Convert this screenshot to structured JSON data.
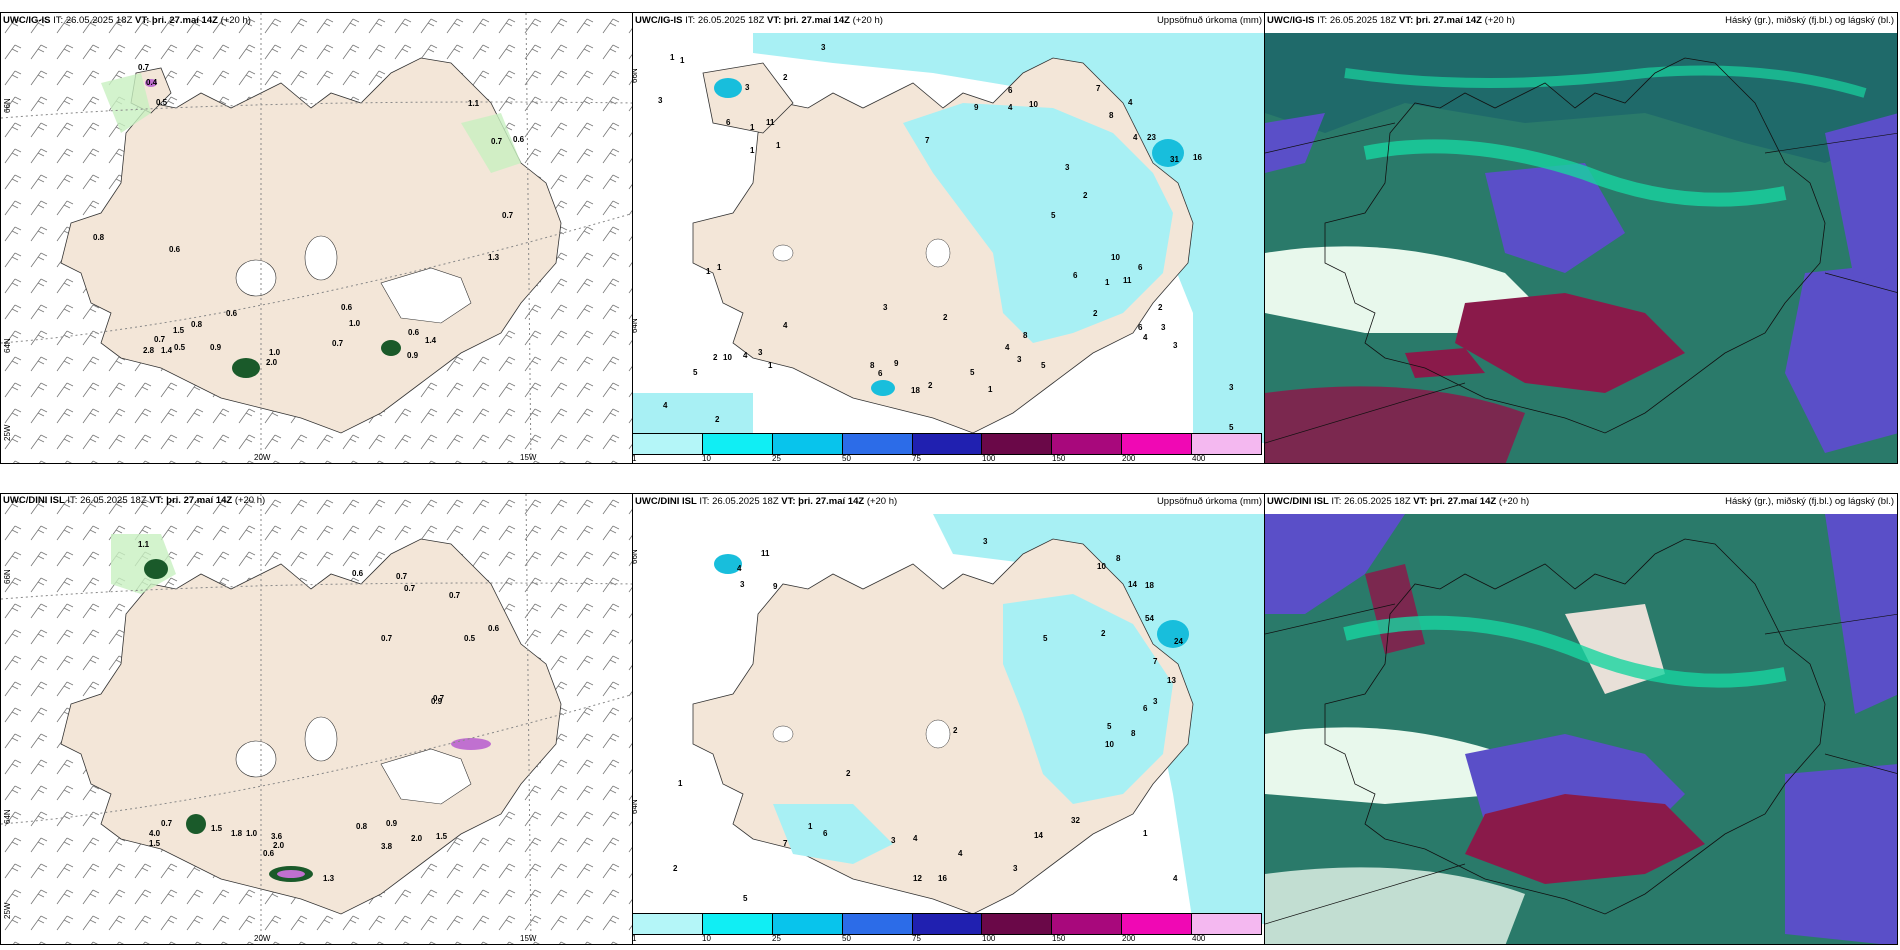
{
  "colors": {
    "land": "#f3e6d8",
    "precip_light": "#a8f0f4",
    "precip_mid": "#12d6e6",
    "precip_heavy": "#18bedc",
    "green_light": "#c8f0c0",
    "cloud_low": "#5a4fc8",
    "cloud_mid": "#0a9c78",
    "cloud_high": "#2a7a6a",
    "cloud_red": "#8a1a4a",
    "colorbar": [
      "#b4f6f8",
      "#10eef4",
      "#08c4ec",
      "#2c6ce8",
      "#2020b0",
      "#6a0848",
      "#a8087c",
      "#f008b4",
      "#f4b8f0"
    ]
  },
  "panels": [
    {
      "model": "UWC/IG-IS",
      "it_label": "IT:",
      "it": "26.05.2025 18Z",
      "vt_label": "VT:",
      "vt": "þri. 27.maí 14Z",
      "lead": "(+20 h)",
      "right_title": ""
    },
    {
      "model": "UWC/IG-IS",
      "it_label": "IT:",
      "it": "26.05.2025 18Z",
      "vt_label": "VT:",
      "vt": "þri. 27.maí 14Z",
      "lead": "(+20 h)",
      "right_title": "Uppsöfnuð úrkoma (mm)"
    },
    {
      "model": "UWC/IG-IS",
      "it_label": "IT:",
      "it": "26.05.2025 18Z",
      "vt_label": "VT:",
      "vt": "þri. 27.maí 14Z",
      "lead": "(+20 h)",
      "right_title": "Háský (gr.), miðský (fj.bl.) og lágský (bl.)"
    },
    {
      "model": "UWC/DINI ISL",
      "it_label": "IT:",
      "it": "26.05.2025 18Z",
      "vt_label": "VT:",
      "vt": "þri. 27.maí 14Z",
      "lead": "(+20 h)",
      "right_title": ""
    },
    {
      "model": "UWC/DINI ISL",
      "it_label": "IT:",
      "it": "26.05.2025 18Z",
      "vt_label": "VT:",
      "vt": "þri. 27.maí 14Z",
      "lead": "(+20 h)",
      "right_title": "Uppsöfnuð úrkoma (mm)"
    },
    {
      "model": "UWC/DINI ISL",
      "it_label": "IT:",
      "it": "26.05.2025 18Z",
      "vt_label": "VT:",
      "vt": "þri. 27.maí 14Z",
      "lead": "(+20 h)",
      "right_title": "Háský (gr.), miðský (fj.bl.) og lágský (bl.)"
    }
  ],
  "geo_labels": {
    "lat_66": "66N",
    "lat_64": "64N",
    "lon_20": "20W",
    "lon_15": "15W",
    "lon_25": "25W"
  },
  "colorbar_ticks": [
    "1",
    "10",
    "25",
    "50",
    "75",
    "100",
    "150",
    "200",
    "400"
  ],
  "wind_panel_top_values": [
    "0.7",
    "0.4",
    "0.5",
    "1.1",
    "0.7",
    "0.6",
    "0.7",
    "0.8",
    "0.6",
    "0.6",
    "0.8",
    "1.5",
    "0.7",
    "1.4",
    "2.8",
    "0.5",
    "0.9",
    "1.0",
    "2.0",
    "0.6",
    "1.0",
    "0.7",
    "0.6",
    "1.4",
    "0.9",
    "1.3"
  ],
  "precip_panel_top_values": [
    "3",
    "1",
    "1",
    "2",
    "3",
    "11",
    "6",
    "1",
    "3",
    "1",
    "1",
    "7",
    "9",
    "4",
    "6",
    "10",
    "7",
    "8",
    "4",
    "4",
    "23",
    "31",
    "16",
    "1",
    "1",
    "5",
    "3",
    "2",
    "1",
    "6",
    "10",
    "6",
    "11",
    "2",
    "8",
    "4",
    "3",
    "2",
    "8",
    "6",
    "9",
    "5",
    "10",
    "4",
    "3",
    "2",
    "5",
    "1",
    "18",
    "2",
    "4",
    "3",
    "3",
    "5",
    "2",
    "3",
    "4",
    "1",
    "6",
    "4",
    "3",
    "2",
    "5"
  ],
  "wind_panel_bottom_values": [
    "1.1",
    "0.6",
    "0.7",
    "0.7",
    "0.7",
    "0.7",
    "0.5",
    "0.6",
    "0.7",
    "1.5",
    "1.8",
    "1.0",
    "0.7",
    "4.0",
    "1.5",
    "3.6",
    "2.0",
    "0.6",
    "0.8",
    "0.9",
    "3.8",
    "2.0",
    "1.5",
    "1.3",
    "0.9"
  ],
  "precip_panel_bottom_values": [
    "11",
    "4",
    "9",
    "3",
    "3",
    "10",
    "8",
    "14",
    "18",
    "54",
    "24",
    "2",
    "5",
    "13",
    "7",
    "3",
    "8",
    "10",
    "6",
    "5",
    "2",
    "2",
    "1",
    "7",
    "4",
    "1",
    "6",
    "4",
    "3",
    "14",
    "32",
    "16",
    "12",
    "2",
    "4",
    "1",
    "3",
    "5"
  ]
}
